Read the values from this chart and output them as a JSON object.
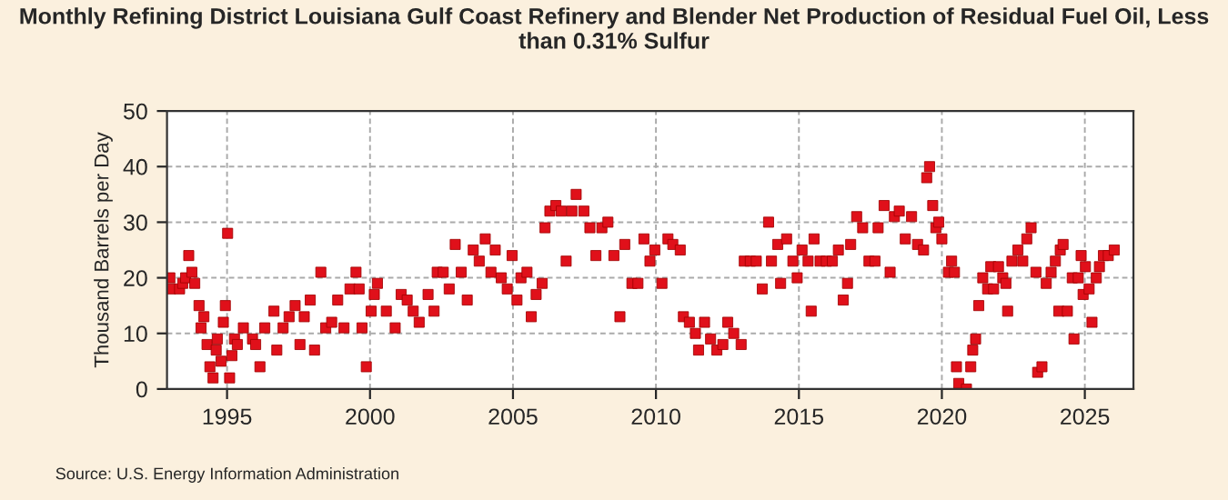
{
  "chart_data": {
    "type": "scatter",
    "title": "Monthly Refining District Louisiana Gulf Coast Refinery and Blender Net Production of Residual Fuel Oil, Less than 0.31% Sulfur",
    "ylabel": "Thousand Barrels per Day",
    "annotations": [
      "Source: U.S. Energy Information Administration"
    ],
    "x": [
      1993.0,
      1993.02,
      1993.34,
      1993.45,
      1993.55,
      1993.66,
      1993.77,
      1993.87,
      1994.02,
      1994.09,
      1994.19,
      1994.3,
      1994.4,
      1994.51,
      1994.62,
      1994.66,
      1994.79,
      1994.87,
      1994.94,
      1995.02,
      1995.09,
      1995.17,
      1995.26,
      1995.36,
      1995.57,
      1995.89,
      1996.0,
      1996.15,
      1996.32,
      1996.64,
      1996.74,
      1996.96,
      1997.17,
      1997.38,
      1997.55,
      1997.7,
      1997.91,
      1998.06,
      1998.28,
      1998.45,
      1998.66,
      1998.87,
      1999.09,
      1999.3,
      1999.51,
      1999.62,
      1999.72,
      1999.87,
      2000.04,
      2000.15,
      2000.26,
      2000.57,
      2000.88,
      2001.09,
      2001.3,
      2001.51,
      2001.72,
      2002.03,
      2002.24,
      2002.35,
      2002.56,
      2002.77,
      2002.98,
      2003.19,
      2003.4,
      2003.61,
      2003.82,
      2004.03,
      2004.23,
      2004.38,
      2004.59,
      2004.8,
      2004.97,
      2005.14,
      2005.28,
      2005.49,
      2005.64,
      2005.81,
      2006.02,
      2006.12,
      2006.29,
      2006.5,
      2006.69,
      2006.86,
      2007.06,
      2007.21,
      2007.48,
      2007.69,
      2007.9,
      2008.11,
      2008.32,
      2008.53,
      2008.74,
      2008.91,
      2009.16,
      2009.37,
      2009.58,
      2009.79,
      2009.96,
      2010.21,
      2010.42,
      2010.59,
      2010.85,
      2010.96,
      2011.17,
      2011.38,
      2011.49,
      2011.7,
      2011.91,
      2012.13,
      2012.34,
      2012.51,
      2012.72,
      2012.98,
      2013.09,
      2013.3,
      2013.51,
      2013.72,
      2013.94,
      2014.04,
      2014.26,
      2014.36,
      2014.57,
      2014.79,
      2014.94,
      2015.11,
      2015.32,
      2015.43,
      2015.53,
      2015.74,
      2015.96,
      2016.17,
      2016.38,
      2016.55,
      2016.7,
      2016.81,
      2017.02,
      2017.23,
      2017.45,
      2017.66,
      2017.77,
      2017.98,
      2018.19,
      2018.34,
      2018.51,
      2018.72,
      2018.94,
      2019.15,
      2019.36,
      2019.47,
      2019.57,
      2019.68,
      2019.79,
      2019.89,
      2020.0,
      2020.23,
      2020.34,
      2020.44,
      2020.51,
      2020.59,
      2020.86,
      2021.01,
      2021.08,
      2021.18,
      2021.29,
      2021.43,
      2021.6,
      2021.71,
      2021.81,
      2021.98,
      2022.13,
      2022.24,
      2022.3,
      2022.45,
      2022.66,
      2022.83,
      2022.97,
      2023.12,
      2023.29,
      2023.35,
      2023.5,
      2023.65,
      2023.82,
      2023.97,
      2024.09,
      2024.14,
      2024.24,
      2024.39,
      2024.56,
      2024.62,
      2024.77,
      2024.87,
      2024.94,
      2025.02,
      2025.15,
      2025.25,
      2025.4,
      2025.51,
      2025.65,
      2025.82,
      2026.03
    ],
    "series": [
      {
        "color": "#e0101a",
        "values": [
          20,
          18,
          18,
          19,
          20,
          24,
          21,
          19,
          15,
          11,
          13,
          8,
          4,
          2,
          7,
          9,
          5,
          12,
          15,
          28,
          2,
          6,
          9,
          8,
          11,
          9,
          8,
          4,
          11,
          14,
          7,
          11,
          13,
          15,
          8,
          13,
          16,
          7,
          21,
          11,
          12,
          16,
          11,
          18,
          21,
          18,
          11,
          4,
          14,
          17,
          19,
          14,
          11,
          17,
          16,
          14,
          12,
          17,
          14,
          21,
          21,
          18,
          26,
          21,
          16,
          25,
          23,
          27,
          21,
          25,
          20,
          18,
          24,
          16,
          20,
          21,
          13,
          17,
          19,
          29,
          32,
          33,
          32,
          23,
          32,
          35,
          32,
          29,
          24,
          29,
          30,
          24,
          13,
          26,
          19,
          19,
          27,
          23,
          25,
          19,
          27,
          26,
          25,
          13,
          12,
          10,
          7,
          12,
          9,
          7,
          8,
          12,
          10,
          8,
          23,
          23,
          23,
          18,
          30,
          23,
          26,
          19,
          27,
          23,
          20,
          25,
          23,
          14,
          27,
          23,
          23,
          23,
          25,
          16,
          19,
          26,
          31,
          29,
          23,
          23,
          29,
          33,
          21,
          31,
          32,
          27,
          31,
          26,
          25,
          38,
          40,
          33,
          29,
          30,
          27,
          21,
          23,
          21,
          4,
          1,
          0,
          4,
          7,
          9,
          15,
          20,
          18,
          22,
          18,
          22,
          20,
          19,
          14,
          23,
          25,
          23,
          27,
          29,
          21,
          3,
          4,
          19,
          21,
          23,
          14,
          25,
          26,
          14,
          20,
          9,
          20,
          24,
          17,
          22,
          18,
          12,
          20,
          22,
          24,
          24,
          25
        ]
      }
    ],
    "xlim": [
      1992.9,
      2026.7
    ],
    "xticks": [
      1995,
      2000,
      2005,
      2010,
      2015,
      2020,
      2025
    ],
    "ylim": [
      0,
      50
    ],
    "yticks": [
      0,
      10,
      20,
      30,
      40,
      50
    ],
    "grid": true,
    "marker": "square"
  }
}
